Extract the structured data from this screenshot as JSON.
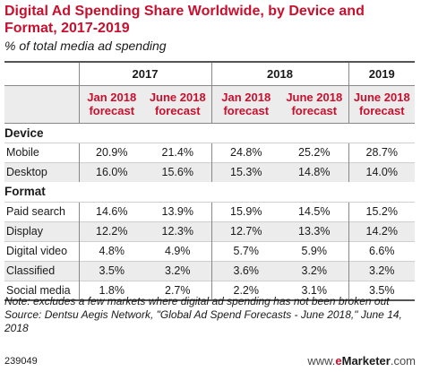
{
  "title": "Digital Ad Spending Share Worldwide, by Device and Format, 2017-2019",
  "subtitle": "% of total media ad spending",
  "years": [
    {
      "label": "2017",
      "span": 2
    },
    {
      "label": "2018",
      "span": 2
    },
    {
      "label": "2019",
      "span": 1
    }
  ],
  "forecast_labels": [
    "Jan 2018 forecast",
    "June 2018 forecast",
    "Jan 2018 forecast",
    "June 2018 forecast",
    "June 2018 forecast"
  ],
  "sections": [
    {
      "name": "Device",
      "rows": [
        {
          "label": "Mobile",
          "values": [
            "20.9%",
            "21.4%",
            "24.8%",
            "25.2%",
            "28.7%"
          ]
        },
        {
          "label": "Desktop",
          "values": [
            "16.0%",
            "15.6%",
            "15.3%",
            "14.8%",
            "14.0%"
          ]
        }
      ]
    },
    {
      "name": "Format",
      "rows": [
        {
          "label": "Paid search",
          "values": [
            "14.6%",
            "13.9%",
            "15.9%",
            "14.5%",
            "15.2%"
          ]
        },
        {
          "label": "Display",
          "values": [
            "12.2%",
            "12.3%",
            "12.7%",
            "13.3%",
            "14.2%"
          ]
        },
        {
          "label": "Digital video",
          "values": [
            "4.8%",
            "4.9%",
            "5.7%",
            "5.9%",
            "6.6%"
          ]
        },
        {
          "label": "Classified",
          "values": [
            "3.5%",
            "3.2%",
            "3.6%",
            "3.2%",
            "3.2%"
          ]
        },
        {
          "label": "Social media",
          "values": [
            "1.8%",
            "2.7%",
            "2.2%",
            "3.1%",
            "3.5%"
          ]
        }
      ]
    }
  ],
  "note": "Note: excludes a few markets where digital ad spending has not been broken out",
  "source": "Source: Dentsu Aegis Network, \"Global Ad Spend Forecasts - June 2018,\" June 14, 2018",
  "footer_id": "239049",
  "brand": {
    "prefix": "www.",
    "e": "e",
    "name": "Marketer",
    "suffix": ".com"
  },
  "colors": {
    "accent": "#c8102e",
    "band": "#ececec",
    "text": "#1a1a1a"
  },
  "chart_data": {
    "type": "table",
    "title": "Digital Ad Spending Share Worldwide, by Device and Format, 2017-2019",
    "subtitle": "% of total media ad spending",
    "columns": [
      "2017 Jan 2018 forecast",
      "2017 June 2018 forecast",
      "2018 Jan 2018 forecast",
      "2018 June 2018 forecast",
      "2019 June 2018 forecast"
    ],
    "rows": [
      {
        "section": "Device",
        "label": "Mobile",
        "values": [
          20.9,
          21.4,
          24.8,
          25.2,
          28.7
        ]
      },
      {
        "section": "Device",
        "label": "Desktop",
        "values": [
          16.0,
          15.6,
          15.3,
          14.8,
          14.0
        ]
      },
      {
        "section": "Format",
        "label": "Paid search",
        "values": [
          14.6,
          13.9,
          15.9,
          14.5,
          15.2
        ]
      },
      {
        "section": "Format",
        "label": "Display",
        "values": [
          12.2,
          12.3,
          12.7,
          13.3,
          14.2
        ]
      },
      {
        "section": "Format",
        "label": "Digital video",
        "values": [
          4.8,
          4.9,
          5.7,
          5.9,
          6.6
        ]
      },
      {
        "section": "Format",
        "label": "Classified",
        "values": [
          3.5,
          3.2,
          3.6,
          3.2,
          3.2
        ]
      },
      {
        "section": "Format",
        "label": "Social media",
        "values": [
          1.8,
          2.7,
          2.2,
          3.1,
          3.5
        ]
      }
    ]
  }
}
